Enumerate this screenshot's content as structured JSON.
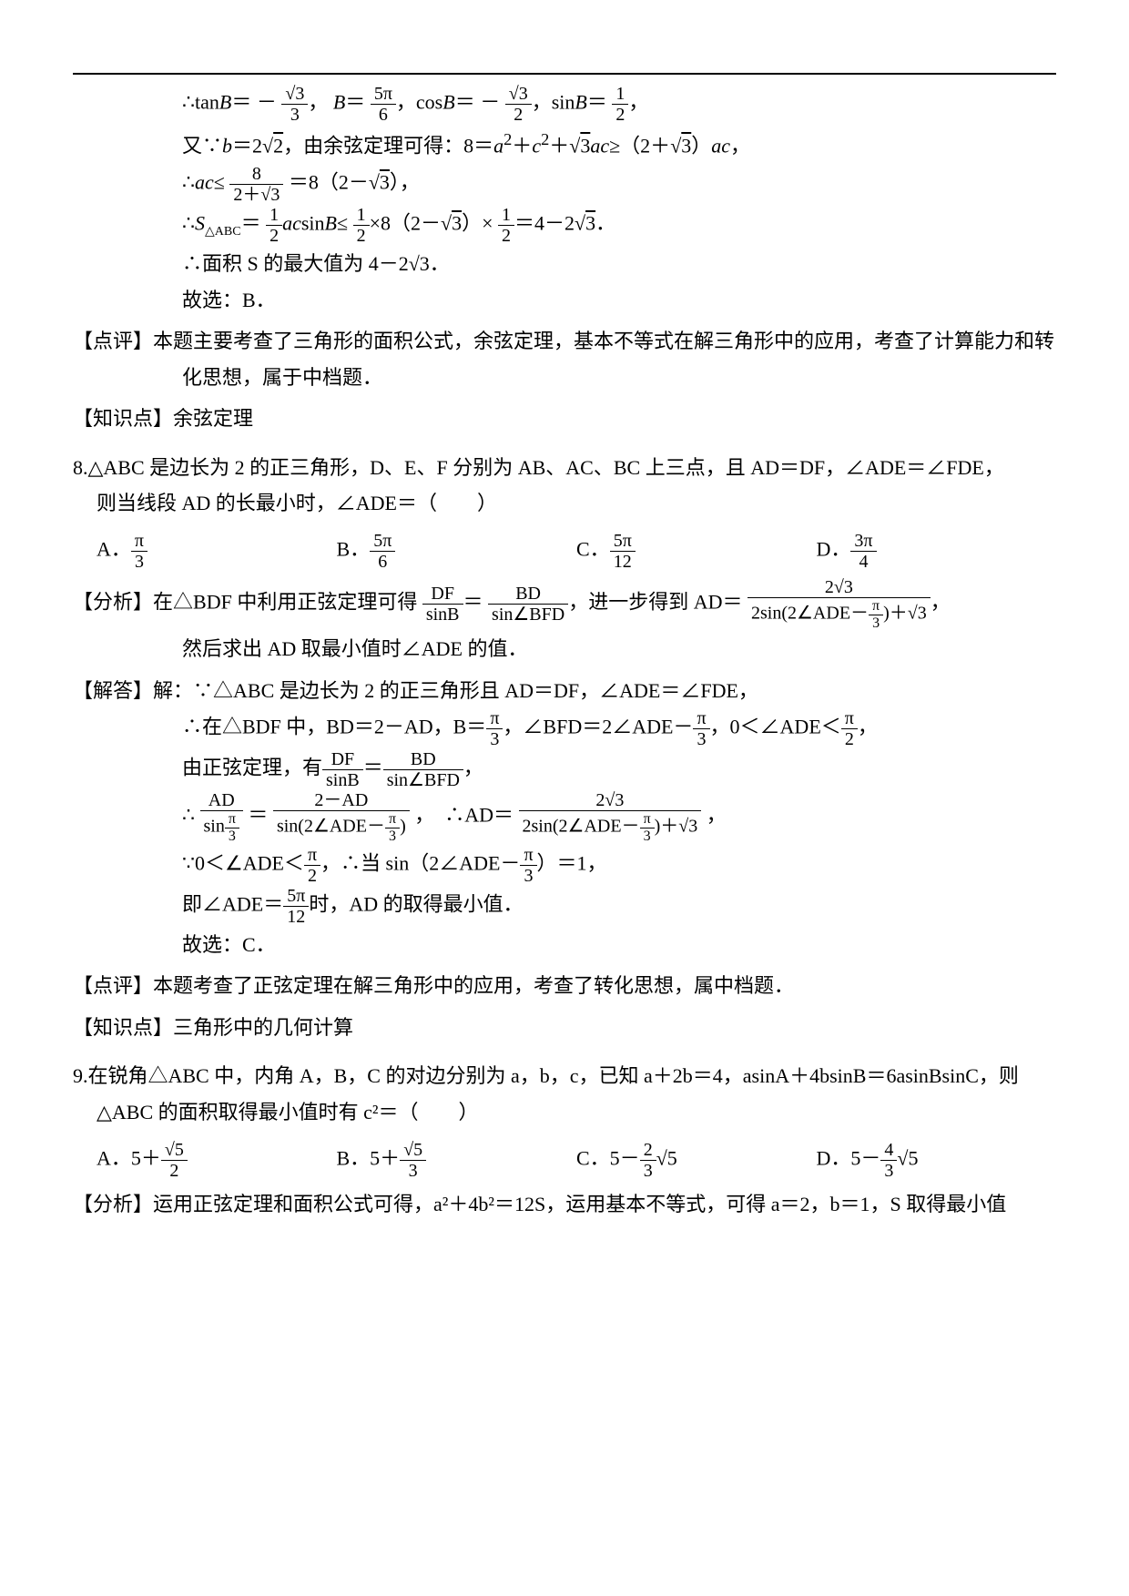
{
  "top": {
    "l1_pre": "∴tan",
    "l1_B": "B",
    "l1_eq1": "＝ －",
    "l1_frac1_n": "√3",
    "l1_frac1_d": "3",
    "l1_com1": "，",
    "l1_B2": "B",
    "l1_eq2": "＝",
    "l1_frac2_n": "5π",
    "l1_frac2_d": "6",
    "l1_com2": "，cos",
    "l1_B3": "B",
    "l1_eq3": "＝ －",
    "l1_frac3_n": "√3",
    "l1_frac3_d": "2",
    "l1_com3": "，sin",
    "l1_B4": "B",
    "l1_eq4": "＝",
    "l1_frac4_n": "1",
    "l1_frac4_d": "2",
    "l1_end": "，",
    "l2a": "又∵",
    "l2b": "b",
    "l2c": "＝2",
    "l2sqrt": "2",
    "l2d": "，由余弦定理可得：8＝",
    "l2e": "a",
    "l2e2": "2",
    "l2f": "＋",
    "l2g": "c",
    "l2g2": "2",
    "l2h": "＋",
    "l2sqrt2": "3",
    "l2i": "ac",
    "l2j": "≥（2＋",
    "l2sqrt3": "3",
    "l2k": "）",
    "l2l": "ac",
    "l2m": "，",
    "l3a": "∴",
    "l3b": "ac",
    "l3c": "≤",
    "l3fn": "8",
    "l3fd": "2＋√3",
    "l3d": "＝8（2－",
    "l3sqrt": "3",
    "l3e": "），",
    "l4a": "∴",
    "l4S": "S",
    "l4sub": "△ABC",
    "l4b": "＝",
    "l4f1n": "1",
    "l4f1d": "2",
    "l4c": "ac",
    "l4d": "sin",
    "l4e": "B",
    "l4f": "≤",
    "l4f2n": "1",
    "l4f2d": "2",
    "l4g": "×8（2－",
    "l4sqrt": "3",
    "l4h": "）×",
    "l4f3n": "1",
    "l4f3d": "2",
    "l4i": "＝4－2",
    "l4sqrt2": "3",
    "l4j": "．",
    "l5": "∴面积 S 的最大值为 4－2√3．",
    "l6": "故选：B．"
  },
  "p7_comment_label": "【点评】",
  "p7_comment_body": "本题主要考查了三角形的面积公式，余弦定理，基本不等式在解三角形中的应用，考查了计算能力和转化思想，属于中档题．",
  "p7_kp_label": "【知识点】",
  "p7_kp_body": "余弦定理",
  "p8": {
    "stem_a": "8.△ABC 是边长为 2 的正三角形，D、E、F 分别为 AB、AC、BC 上三点，且 AD＝DF，∠ADE＝∠FDE，",
    "stem_b": "则当线段 AD 的长最小时，∠ADE＝（　　）",
    "optA": "A．",
    "optA_n": "π",
    "optA_d": "3",
    "optB": "B．",
    "optB_n": "5π",
    "optB_d": "6",
    "optC": "C．",
    "optC_n": "5π",
    "optC_d": "12",
    "optD": "D．",
    "optD_n": "3π",
    "optD_d": "4",
    "ana_label": "【分析】",
    "ana_body_a": "在△BDF 中利用正弦定理可得",
    "ana_f1n": "DF",
    "ana_f1d": "sinB",
    "ana_eq": "＝",
    "ana_f2n": "BD",
    "ana_f2d": "sin∠BFD",
    "ana_body_b": "，进一步得到 AD＝",
    "ana_f3n": "2√3",
    "ana_f3d_a": "2sin(2∠ADE－",
    "ana_f3d_n": "π",
    "ana_f3d_d": "3",
    "ana_f3d_b": ")＋√3",
    "ana_body_c": "，",
    "ana_body_d": "然后求出 AD 取最小值时∠ADE 的值．",
    "sol_label": "【解答】",
    "sol_l1": "解：∵△ABC 是边长为 2 的正三角形且 AD＝DF，∠ADE＝∠FDE，",
    "sol_l2a": "∴在△BDF 中，BD＝2－AD，B＝",
    "sol_l2_f1n": "π",
    "sol_l2_f1d": "3",
    "sol_l2b": "，∠BFD＝2∠ADE－",
    "sol_l2_f2n": "π",
    "sol_l2_f2d": "3",
    "sol_l2c": "，0＜∠ADE＜",
    "sol_l2_f3n": "π",
    "sol_l2_f3d": "2",
    "sol_l2d": "，",
    "sol_l3a": "由正弦定理，有",
    "sol_l3_f1n": "DF",
    "sol_l3_f1d": "sinB",
    "sol_l3b": "＝",
    "sol_l3_f2n": "BD",
    "sol_l3_f2d": "sin∠BFD",
    "sol_l3c": "，",
    "sol_l4a": "∴",
    "sol_l4_f1n": "AD",
    "sol_l4_f1d_a": "sin",
    "sol_l4_f1d_n": "π",
    "sol_l4_f1d_d": "3",
    "sol_l4b": "＝",
    "sol_l4_f2n": "2－AD",
    "sol_l4_f2d_a": "sin(2∠ADE－",
    "sol_l4_f2d_n": "π",
    "sol_l4_f2d_d": "3",
    "sol_l4_f2d_b": ")",
    "sol_l4c": "，　∴AD＝",
    "sol_l4_f3n": "2√3",
    "sol_l4_f3d_a": "2sin(2∠ADE－",
    "sol_l4_f3d_n": "π",
    "sol_l4_f3d_d": "3",
    "sol_l4_f3d_b": ")＋√3",
    "sol_l4d": "，",
    "sol_l5a": "∵0＜∠ADE＜",
    "sol_l5_f1n": "π",
    "sol_l5_f1d": "2",
    "sol_l5b": "，∴当 sin（2∠ADE－",
    "sol_l5_f2n": "π",
    "sol_l5_f2d": "3",
    "sol_l5c": "）＝1，",
    "sol_l6a": "即∠ADE＝",
    "sol_l6_f1n": "5π",
    "sol_l6_f1d": "12",
    "sol_l6b": "时，AD 的取得最小值．",
    "sol_l7": "故选：C．",
    "comment_label": "【点评】",
    "comment_body": "本题考查了正弦定理在解三角形中的应用，考查了转化思想，属中档题．",
    "kp_label": "【知识点】",
    "kp_body": "三角形中的几何计算"
  },
  "p9": {
    "stem_a": "9.在锐角△ABC 中，内角 A，B，C 的对边分别为 a，b，c，已知 a＋2b＝4，asinA＋4bsinB＝6asinBsinC，则",
    "stem_b": "△ABC 的面积取得最小值时有 c²＝（　　）",
    "optA_a": "A．5＋",
    "optA_n": "√5",
    "optA_d": "2",
    "optB_a": "B．5＋",
    "optB_n": "√5",
    "optB_d": "3",
    "optC_a": "C．5－",
    "optC_n": "2",
    "optC_d": "3",
    "optC_b": "√5",
    "optD_a": "D．5－",
    "optD_n": "4",
    "optD_d": "3",
    "optD_b": "√5",
    "ana_label": "【分析】",
    "ana_body": "运用正弦定理和面积公式可得，a²＋4b²＝12S，运用基本不等式，可得 a＝2，b＝1，S 取得最小值"
  }
}
